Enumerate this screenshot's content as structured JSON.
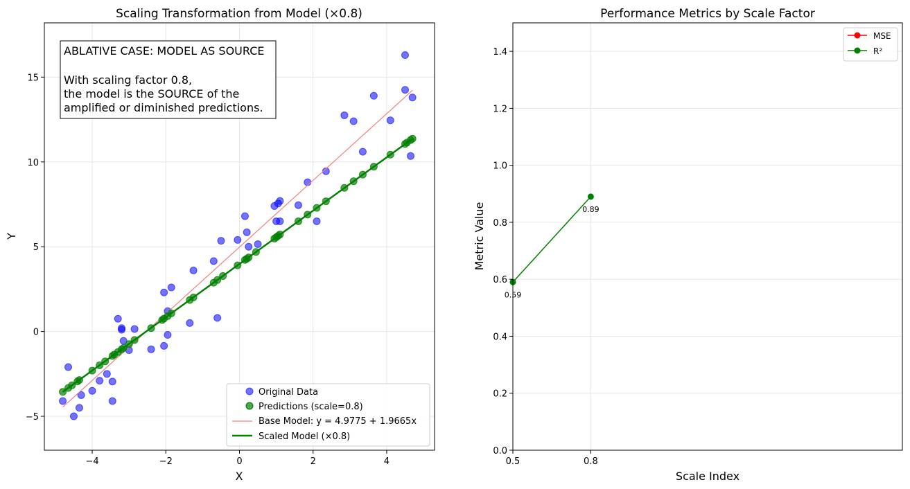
{
  "chart_data": [
    {
      "type": "scatter",
      "title": "Scaling Transformation from Model (×0.8)",
      "xlabel": "X",
      "ylabel": "Y",
      "xlim": [
        -5.3,
        5.3
      ],
      "ylim": [
        -7.0,
        18.2
      ],
      "xticks": [
        -4,
        -2,
        0,
        2,
        4
      ],
      "yticks": [
        -5,
        0,
        5,
        10,
        15
      ],
      "grid": true,
      "legend_position": "lower-right",
      "annotation": {
        "lines": [
          "ABLATIVE CASE: MODEL AS SOURCE",
          "",
          "With scaling factor 0.8,",
          "the model is the SOURCE of the",
          "amplified or diminished predictions."
        ]
      },
      "colors": {
        "original": "#0000ff",
        "predictions": "#008000",
        "base_line": "#f08080",
        "scaled_line": "#008000"
      },
      "series": [
        {
          "name": "Original Data",
          "kind": "scatter",
          "x": [
            -4.8,
            -4.65,
            -4.5,
            -4.35,
            -4.3,
            -4.0,
            -3.8,
            -3.6,
            -3.45,
            -3.45,
            -3.3,
            -3.2,
            -3.2,
            -3.15,
            -3.0,
            -2.85,
            -2.4,
            -2.05,
            -2.05,
            -1.95,
            -1.95,
            -1.85,
            -1.35,
            -1.25,
            -0.7,
            -0.6,
            -0.5,
            -0.05,
            0.15,
            0.2,
            0.25,
            0.5,
            0.95,
            1.0,
            1.05,
            1.1,
            1.1,
            1.6,
            1.85,
            2.1,
            2.35,
            2.85,
            3.1,
            3.35,
            3.65,
            4.1,
            4.5,
            4.5,
            4.65,
            4.7
          ],
          "y": [
            -4.1,
            -2.1,
            -5.0,
            -4.5,
            -3.75,
            -3.5,
            -2.9,
            -2.5,
            -2.95,
            -4.1,
            0.75,
            0.1,
            0.2,
            -0.55,
            -1.1,
            0.15,
            -1.05,
            2.3,
            -0.85,
            1.2,
            -0.2,
            2.6,
            0.5,
            3.6,
            4.15,
            0.8,
            5.35,
            5.4,
            6.8,
            5.85,
            5.0,
            5.15,
            7.4,
            6.5,
            7.55,
            7.7,
            6.5,
            7.45,
            8.8,
            6.5,
            9.45,
            12.75,
            12.4,
            10.6,
            13.9,
            12.45,
            16.3,
            14.25,
            10.35,
            13.8
          ]
        },
        {
          "name": "Predictions (scale=0.8)",
          "kind": "scatter",
          "x": [
            -4.8,
            -4.65,
            -4.55,
            -4.4,
            -4.35,
            -4.0,
            -3.8,
            -3.65,
            -3.45,
            -3.4,
            -3.3,
            -3.2,
            -3.15,
            -3.0,
            -2.85,
            -2.4,
            -2.1,
            -2.05,
            -1.95,
            -1.85,
            -1.35,
            -1.25,
            -0.7,
            -0.6,
            -0.45,
            -0.05,
            0.15,
            0.2,
            0.25,
            0.45,
            0.95,
            1.0,
            1.05,
            1.1,
            1.6,
            1.85,
            2.1,
            2.35,
            2.85,
            3.1,
            3.35,
            3.65,
            4.1,
            4.5,
            4.55,
            4.65,
            4.7
          ],
          "y": [
            -3.56,
            -3.33,
            -3.17,
            -2.94,
            -2.86,
            -2.31,
            -1.99,
            -1.76,
            -1.44,
            -1.36,
            -1.21,
            -1.05,
            -0.97,
            -0.74,
            -0.5,
            0.2,
            0.68,
            0.76,
            0.91,
            1.07,
            1.86,
            2.01,
            2.88,
            3.04,
            3.27,
            3.9,
            4.22,
            4.29,
            4.37,
            4.69,
            5.48,
            5.56,
            5.64,
            5.72,
            6.5,
            6.89,
            7.29,
            7.68,
            8.47,
            8.86,
            9.25,
            9.72,
            10.43,
            11.06,
            11.14,
            11.29,
            11.37
          ]
        },
        {
          "name": "Base Model: y = 4.9775 + 1.9665x",
          "kind": "line",
          "x": [
            -4.8,
            4.7
          ],
          "y": [
            -4.46,
            14.22
          ]
        },
        {
          "name": "Scaled Model (×0.8)",
          "kind": "line",
          "x": [
            -4.8,
            4.7
          ],
          "y": [
            -3.56,
            11.37
          ]
        }
      ]
    },
    {
      "type": "line",
      "title": "Performance Metrics by Scale Factor",
      "xlabel": "Scale Index",
      "ylabel": "Metric Value",
      "xlim": [
        0,
        5
      ],
      "ylim": [
        0,
        1.5
      ],
      "xticks": [
        {
          "value": 0,
          "label": "0.5"
        },
        {
          "value": 1,
          "label": "0.8"
        }
      ],
      "yticks": [
        0.0,
        0.2,
        0.4,
        0.6,
        0.8,
        1.0,
        1.2,
        1.4
      ],
      "ytick_labels": [
        "0.0",
        "0.2",
        "0.4",
        "0.6",
        "0.8",
        "1.0",
        "1.2",
        "1.4"
      ],
      "grid": true,
      "legend_position": "top-right",
      "series": [
        {
          "name": "MSE",
          "color": "#ff0000",
          "x": [],
          "y": []
        },
        {
          "name": "R²",
          "color": "#008000",
          "x": [
            0,
            1
          ],
          "y": [
            0.59,
            0.89
          ],
          "data_labels": [
            "0.59",
            "0.89"
          ]
        }
      ]
    }
  ]
}
